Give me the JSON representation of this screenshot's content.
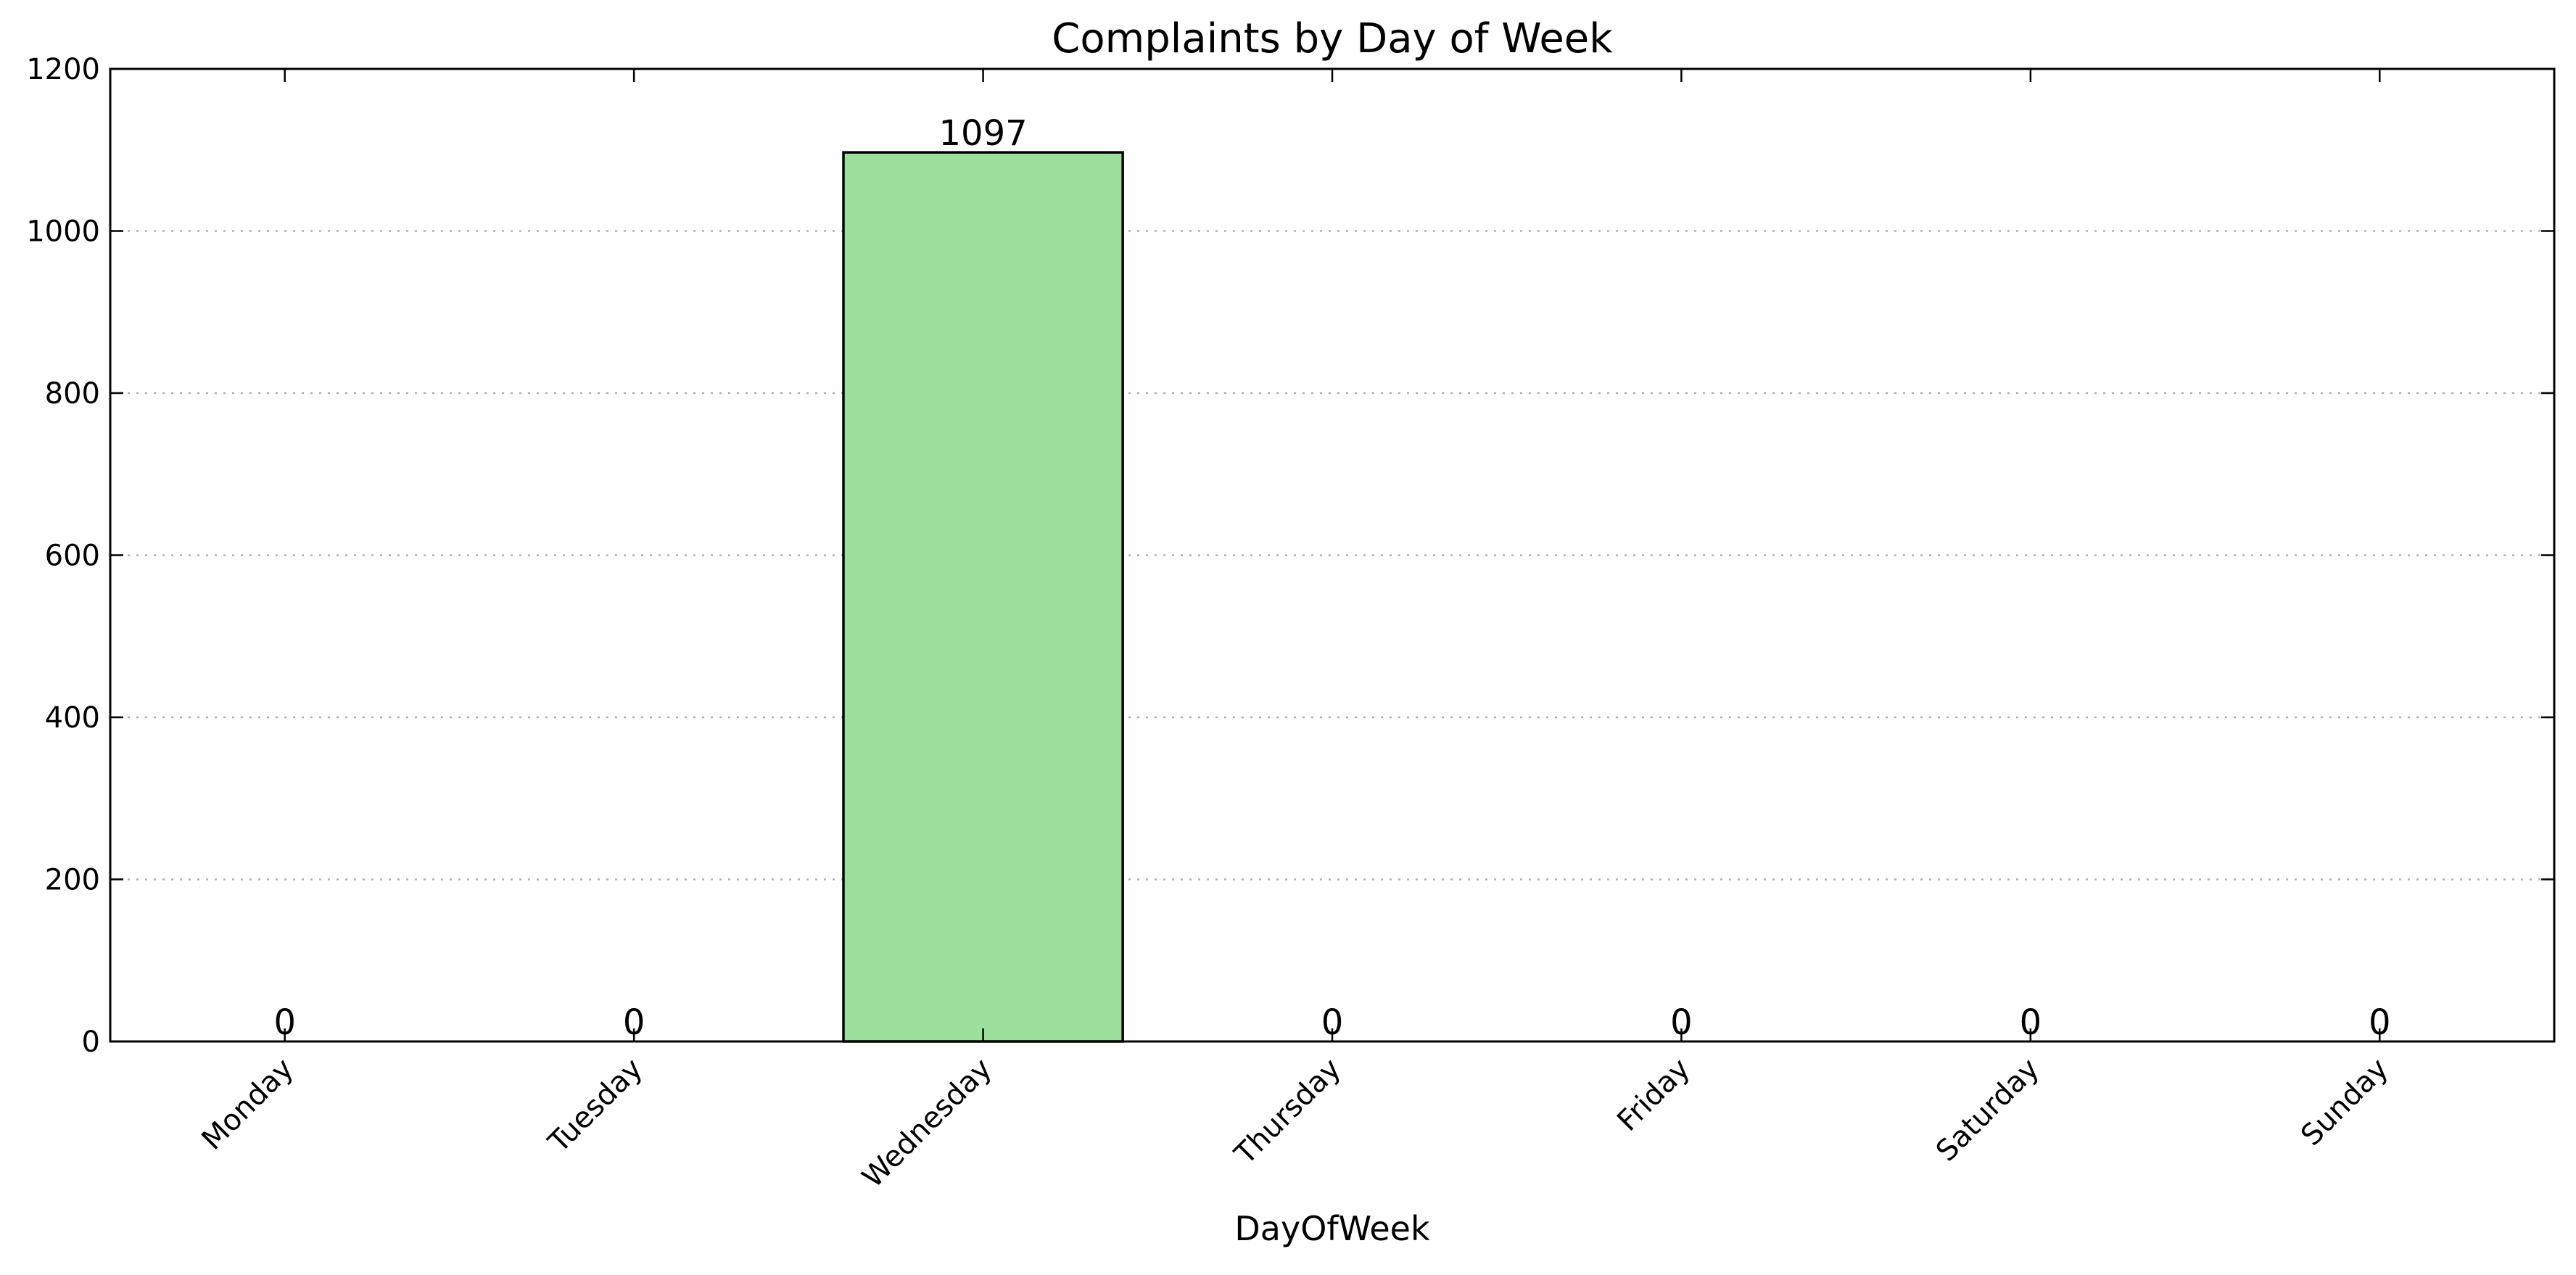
{
  "chart_data": {
    "type": "bar",
    "title": "Complaints by Day of Week",
    "xlabel": "DayOfWeek",
    "ylabel": "",
    "categories": [
      "Monday",
      "Tuesday",
      "Wednesday",
      "Thursday",
      "Friday",
      "Saturday",
      "Sunday"
    ],
    "values": [
      0,
      0,
      1097,
      0,
      0,
      0,
      0
    ],
    "data_labels": [
      "0",
      "0",
      "1097",
      "0",
      "0",
      "0",
      "0"
    ],
    "ylim": [
      0,
      1200
    ],
    "yticks": [
      0,
      200,
      400,
      600,
      800,
      1000,
      1200
    ],
    "ytick_labels": [
      "0",
      "200",
      "400",
      "600",
      "800",
      "1000",
      "1200"
    ],
    "grid": "y-dotted",
    "legend": "none",
    "bar_color": "#9de09b",
    "bar_edge_color": "#000000",
    "grid_color": "#b0b0b0"
  }
}
